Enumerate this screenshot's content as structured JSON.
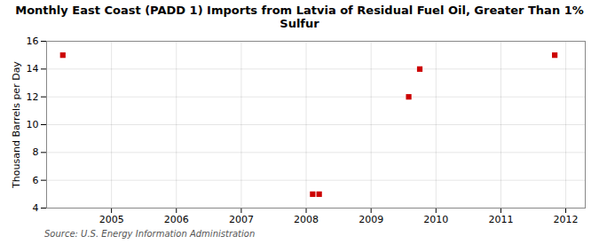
{
  "chart_data": {
    "type": "scatter",
    "title": "Monthly East Coast (PADD 1) Imports from Latvia of Residual Fuel Oil, Greater Than 1% Sulfur",
    "ylabel": "Thousand Barrels per Day",
    "source": "Source: U.S. Energy Information Administration",
    "x": [
      2004.25,
      2008.1,
      2008.2,
      2009.58,
      2009.75,
      2011.83
    ],
    "values": [
      15,
      5,
      5,
      12,
      14,
      15
    ],
    "color": "#cc0000",
    "marker": "square",
    "xlim": [
      2004.0,
      2012.3
    ],
    "xticks": [
      2005,
      2006,
      2007,
      2008,
      2009,
      2010,
      2011,
      2012
    ],
    "ylim": [
      4,
      16
    ],
    "yticks": [
      4,
      6,
      8,
      10,
      12,
      14,
      16
    ],
    "grid": true
  }
}
